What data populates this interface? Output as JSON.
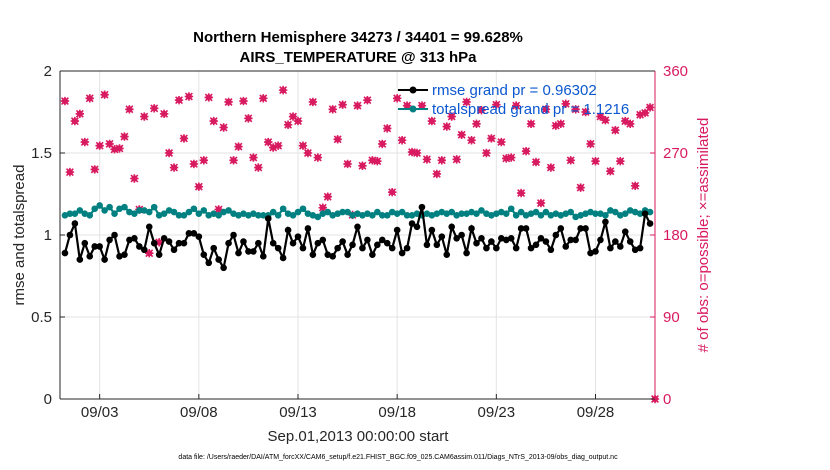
{
  "chart_data": {
    "type": "line",
    "title": "Northern Hemisphere 34273 / 34401 = 99.628%",
    "subtitle": "AIRS_TEMPERATURE @ 313 hPa",
    "xlabel": "Sep.01,2013 00:00:00 start",
    "ylabel": "rmse and totalspread",
    "y2label": "# of obs: o=possible; ×=assimilated",
    "xlim": [
      1.0,
      31.0
    ],
    "ylim": [
      0,
      2
    ],
    "y2lim": [
      0,
      360
    ],
    "xtick_values": [
      3,
      8,
      13,
      18,
      23,
      28
    ],
    "xtick_labels": [
      "09/03",
      "09/08",
      "09/13",
      "09/18",
      "09/23",
      "09/28"
    ],
    "ytick_labels": [
      "0",
      "0.5",
      "1",
      "1.5",
      "2"
    ],
    "y2tick_labels": [
      "0",
      "90",
      "180",
      "270",
      "360"
    ],
    "footnote": "data file: /Users/raeder/DAI/ATM_forcXX/CAM6_setup/f.e21.FHIST_BGC.f09_025.CAM6assim.011/Diags_NTrS_2013-09/obs_diag_output.nc",
    "series": [
      {
        "name": "rmse grand pr = 0.96302",
        "axis": "left",
        "color": "#000000",
        "x": [
          1.25,
          1.5,
          1.75,
          2.0,
          2.25,
          2.5,
          2.75,
          3.0,
          3.25,
          3.5,
          3.75,
          4.0,
          4.25,
          4.5,
          4.75,
          5.0,
          5.25,
          5.5,
          5.75,
          6.0,
          6.25,
          6.5,
          6.75,
          7.0,
          7.25,
          7.5,
          7.75,
          8.0,
          8.25,
          8.5,
          8.75,
          9.0,
          9.25,
          9.5,
          9.75,
          10.0,
          10.25,
          10.5,
          10.75,
          11.0,
          11.25,
          11.5,
          11.75,
          12.0,
          12.25,
          12.5,
          12.75,
          13.0,
          13.25,
          13.5,
          13.75,
          14.0,
          14.25,
          14.5,
          14.75,
          15.0,
          15.25,
          15.5,
          15.75,
          16.0,
          16.25,
          16.5,
          16.75,
          17.0,
          17.25,
          17.5,
          17.75,
          18.0,
          18.25,
          18.5,
          18.75,
          19.0,
          19.25,
          19.5,
          19.75,
          20.0,
          20.25,
          20.5,
          20.75,
          21.0,
          21.25,
          21.5,
          21.75,
          22.0,
          22.25,
          22.5,
          22.75,
          23.0,
          23.25,
          23.5,
          23.75,
          24.0,
          24.25,
          24.5,
          24.75,
          25.0,
          25.25,
          25.5,
          25.75,
          26.0,
          26.25,
          26.5,
          26.75,
          27.0,
          27.25,
          27.5,
          27.75,
          28.0,
          28.25,
          28.5,
          28.75,
          29.0,
          29.25,
          29.5,
          29.75,
          30.0,
          30.25,
          30.5,
          30.75
        ],
        "values": [
          0.89,
          1.0,
          1.07,
          0.85,
          0.95,
          0.87,
          0.93,
          0.93,
          0.85,
          0.97,
          1.0,
          0.87,
          0.88,
          0.97,
          0.98,
          0.93,
          0.91,
          1.05,
          0.95,
          0.88,
          0.98,
          0.96,
          0.91,
          0.95,
          0.95,
          1.01,
          1.01,
          0.99,
          0.88,
          0.83,
          0.92,
          0.85,
          0.8,
          0.95,
          1.0,
          0.89,
          0.96,
          0.9,
          0.9,
          0.95,
          0.87,
          1.1,
          0.95,
          0.92,
          0.86,
          1.03,
          0.95,
          0.99,
          0.92,
          1.04,
          0.88,
          0.95,
          0.97,
          0.88,
          0.87,
          0.92,
          0.96,
          0.88,
          0.94,
          1.05,
          0.92,
          0.97,
          0.88,
          0.94,
          0.97,
          0.95,
          0.92,
          1.03,
          0.89,
          0.92,
          1.07,
          1.05,
          1.17,
          0.94,
          1.03,
          0.94,
          0.99,
          0.88,
          1.05,
          0.98,
          1.0,
          0.89,
          1.04,
          0.95,
          0.98,
          0.92,
          0.96,
          0.92,
          0.98,
          0.97,
          0.98,
          0.92,
          1.04,
          1.04,
          0.92,
          0.94,
          0.98,
          0.96,
          0.91,
          1.0,
          1.04,
          0.93,
          0.97,
          0.97,
          1.04,
          1.04,
          0.89,
          0.9,
          0.97,
          1.08,
          0.92,
          0.96,
          0.93,
          1.02,
          0.96,
          0.91,
          0.92,
          1.13,
          1.07
        ]
      },
      {
        "name": "totalspread grand pr = 1.1216",
        "axis": "left",
        "color": "#008080",
        "x": [
          1.25,
          1.5,
          1.75,
          2.0,
          2.25,
          2.5,
          2.75,
          3.0,
          3.25,
          3.5,
          3.75,
          4.0,
          4.25,
          4.5,
          4.75,
          5.0,
          5.25,
          5.5,
          5.75,
          6.0,
          6.25,
          6.5,
          6.75,
          7.0,
          7.25,
          7.5,
          7.75,
          8.0,
          8.25,
          8.5,
          8.75,
          9.0,
          9.25,
          9.5,
          9.75,
          10.0,
          10.25,
          10.5,
          10.75,
          11.0,
          11.25,
          11.5,
          11.75,
          12.0,
          12.25,
          12.5,
          12.75,
          13.0,
          13.25,
          13.5,
          13.75,
          14.0,
          14.25,
          14.5,
          14.75,
          15.0,
          15.25,
          15.5,
          15.75,
          16.0,
          16.25,
          16.5,
          16.75,
          17.0,
          17.25,
          17.5,
          17.75,
          18.0,
          18.25,
          18.5,
          18.75,
          19.0,
          19.25,
          19.5,
          19.75,
          20.0,
          20.25,
          20.5,
          20.75,
          21.0,
          21.25,
          21.5,
          21.75,
          22.0,
          22.25,
          22.5,
          22.75,
          23.0,
          23.25,
          23.5,
          23.75,
          24.0,
          24.25,
          24.5,
          24.75,
          25.0,
          25.25,
          25.5,
          25.75,
          26.0,
          26.25,
          26.5,
          26.75,
          27.0,
          27.25,
          27.5,
          27.75,
          28.0,
          28.25,
          28.5,
          28.75,
          29.0,
          29.25,
          29.5,
          29.75,
          30.0,
          30.25,
          30.5,
          30.75
        ],
        "values": [
          1.12,
          1.13,
          1.13,
          1.15,
          1.13,
          1.12,
          1.16,
          1.18,
          1.15,
          1.17,
          1.13,
          1.16,
          1.17,
          1.14,
          1.13,
          1.15,
          1.15,
          1.14,
          1.17,
          1.12,
          1.13,
          1.15,
          1.14,
          1.12,
          1.12,
          1.14,
          1.16,
          1.13,
          1.15,
          1.12,
          1.13,
          1.12,
          1.14,
          1.15,
          1.13,
          1.12,
          1.13,
          1.12,
          1.13,
          1.12,
          1.12,
          1.12,
          1.14,
          1.12,
          1.16,
          1.13,
          1.12,
          1.14,
          1.16,
          1.13,
          1.12,
          1.11,
          1.13,
          1.14,
          1.12,
          1.13,
          1.14,
          1.14,
          1.12,
          1.13,
          1.12,
          1.13,
          1.12,
          1.14,
          1.12,
          1.12,
          1.14,
          1.13,
          1.14,
          1.12,
          1.12,
          1.13,
          1.12,
          1.13,
          1.12,
          1.13,
          1.14,
          1.13,
          1.14,
          1.12,
          1.13,
          1.13,
          1.14,
          1.13,
          1.15,
          1.13,
          1.12,
          1.13,
          1.14,
          1.13,
          1.16,
          1.12,
          1.14,
          1.12,
          1.13,
          1.14,
          1.12,
          1.14,
          1.12,
          1.13,
          1.12,
          1.13,
          1.14,
          1.11,
          1.12,
          1.13,
          1.14,
          1.13,
          1.13,
          1.12,
          1.15,
          1.14,
          1.12,
          1.13,
          1.15,
          1.14,
          1.13,
          1.15,
          1.14
        ]
      },
      {
        "name": "# of obs possible",
        "axis": "right",
        "color": "#d81b60",
        "x": [
          1.25,
          1.5,
          1.75,
          2.0,
          2.25,
          2.5,
          2.75,
          3.0,
          3.25,
          3.5,
          3.75,
          4.0,
          4.25,
          4.5,
          4.75,
          5.0,
          5.25,
          5.5,
          5.75,
          6.0,
          6.25,
          6.5,
          6.75,
          7.0,
          7.25,
          7.5,
          7.75,
          8.0,
          8.25,
          8.5,
          8.75,
          9.0,
          9.25,
          9.5,
          9.75,
          10.0,
          10.25,
          10.5,
          10.75,
          11.0,
          11.25,
          11.5,
          11.75,
          12.0,
          12.25,
          12.5,
          12.75,
          13.0,
          13.25,
          13.5,
          13.75,
          14.0,
          14.25,
          14.5,
          14.75,
          15.0,
          15.25,
          15.5,
          15.75,
          16.0,
          16.25,
          16.5,
          16.75,
          17.0,
          17.25,
          17.5,
          17.75,
          18.0,
          18.25,
          18.5,
          18.75,
          19.0,
          19.25,
          19.5,
          19.75,
          20.0,
          20.25,
          20.5,
          20.75,
          21.0,
          21.25,
          21.5,
          21.75,
          22.0,
          22.25,
          22.5,
          22.75,
          23.0,
          23.25,
          23.5,
          23.75,
          24.0,
          24.25,
          24.5,
          24.75,
          25.0,
          25.25,
          25.5,
          25.75,
          26.0,
          26.25,
          26.5,
          26.75,
          27.0,
          27.25,
          27.5,
          27.75,
          28.0,
          28.25,
          28.5,
          28.75,
          29.0,
          29.25,
          29.5,
          29.75,
          30.0,
          30.25,
          30.5,
          30.75,
          31.0
        ],
        "values": [
          327,
          249,
          305,
          313,
          282,
          330,
          252,
          278,
          334,
          280,
          274,
          275,
          288,
          318,
          242,
          208,
          310,
          160,
          319,
          172,
          313,
          270,
          254,
          328,
          286,
          332,
          258,
          233,
          262,
          331,
          305,
          208,
          298,
          326,
          262,
          277,
          327,
          308,
          265,
          254,
          330,
          282,
          276,
          278,
          339,
          301,
          310,
          305,
          278,
          270,
          326,
          265,
          210,
          222,
          318,
          285,
          323,
          258,
          202,
          322,
          256,
          328,
          262,
          261,
          280,
          297,
          227,
          330,
          284,
          322,
          271,
          270,
          322,
          263,
          305,
          247,
          262,
          299,
          310,
          263,
          290,
          326,
          284,
          302,
          317,
          270,
          286,
          323,
          282,
          264,
          265,
          322,
          226,
          272,
          302,
          260,
          215,
          318,
          254,
          300,
          302,
          324,
          262,
          318,
          232,
          315,
          280,
          261,
          310,
          306,
          250,
          295,
          261,
          305,
          302,
          234,
          312,
          314,
          320,
          0
        ]
      },
      {
        "name": "# of obs assimilated",
        "axis": "right",
        "color": "#d81b60",
        "x": [
          1.25,
          1.5,
          1.75,
          2.0,
          2.25,
          2.5,
          2.75,
          3.0,
          3.25,
          3.5,
          3.75,
          4.0,
          4.25,
          4.5,
          4.75,
          5.0,
          5.25,
          5.5,
          5.75,
          6.0,
          6.25,
          6.5,
          6.75,
          7.0,
          7.25,
          7.5,
          7.75,
          8.0,
          8.25,
          8.5,
          8.75,
          9.0,
          9.25,
          9.5,
          9.75,
          10.0,
          10.25,
          10.5,
          10.75,
          11.0,
          11.25,
          11.5,
          11.75,
          12.0,
          12.25,
          12.5,
          12.75,
          13.0,
          13.25,
          13.5,
          13.75,
          14.0,
          14.25,
          14.5,
          14.75,
          15.0,
          15.25,
          15.5,
          15.75,
          16.0,
          16.25,
          16.5,
          16.75,
          17.0,
          17.25,
          17.5,
          17.75,
          18.0,
          18.25,
          18.5,
          18.75,
          19.0,
          19.25,
          19.5,
          19.75,
          20.0,
          20.25,
          20.5,
          20.75,
          21.0,
          21.25,
          21.5,
          21.75,
          22.0,
          22.25,
          22.5,
          22.75,
          23.0,
          23.25,
          23.5,
          23.75,
          24.0,
          24.25,
          24.5,
          24.75,
          25.0,
          25.25,
          25.5,
          25.75,
          26.0,
          26.25,
          26.5,
          26.75,
          27.0,
          27.25,
          27.5,
          27.75,
          28.0,
          28.25,
          28.5,
          28.75,
          29.0,
          29.25,
          29.5,
          29.75,
          30.0,
          30.25,
          30.5,
          30.75,
          31.0
        ],
        "values": [
          327,
          249,
          305,
          313,
          282,
          330,
          252,
          278,
          334,
          280,
          274,
          275,
          288,
          318,
          242,
          208,
          310,
          160,
          319,
          172,
          313,
          270,
          254,
          328,
          286,
          332,
          258,
          233,
          262,
          331,
          305,
          208,
          298,
          326,
          262,
          277,
          327,
          308,
          265,
          254,
          330,
          282,
          276,
          278,
          339,
          301,
          310,
          305,
          278,
          270,
          326,
          265,
          210,
          222,
          318,
          285,
          323,
          258,
          202,
          322,
          256,
          328,
          262,
          261,
          280,
          297,
          227,
          330,
          284,
          322,
          271,
          270,
          322,
          263,
          305,
          247,
          262,
          299,
          310,
          263,
          290,
          326,
          284,
          302,
          317,
          270,
          286,
          323,
          282,
          264,
          265,
          322,
          226,
          272,
          302,
          260,
          215,
          318,
          254,
          300,
          302,
          324,
          262,
          318,
          232,
          315,
          280,
          261,
          310,
          306,
          250,
          295,
          261,
          305,
          302,
          234,
          312,
          314,
          320,
          0
        ]
      }
    ]
  }
}
